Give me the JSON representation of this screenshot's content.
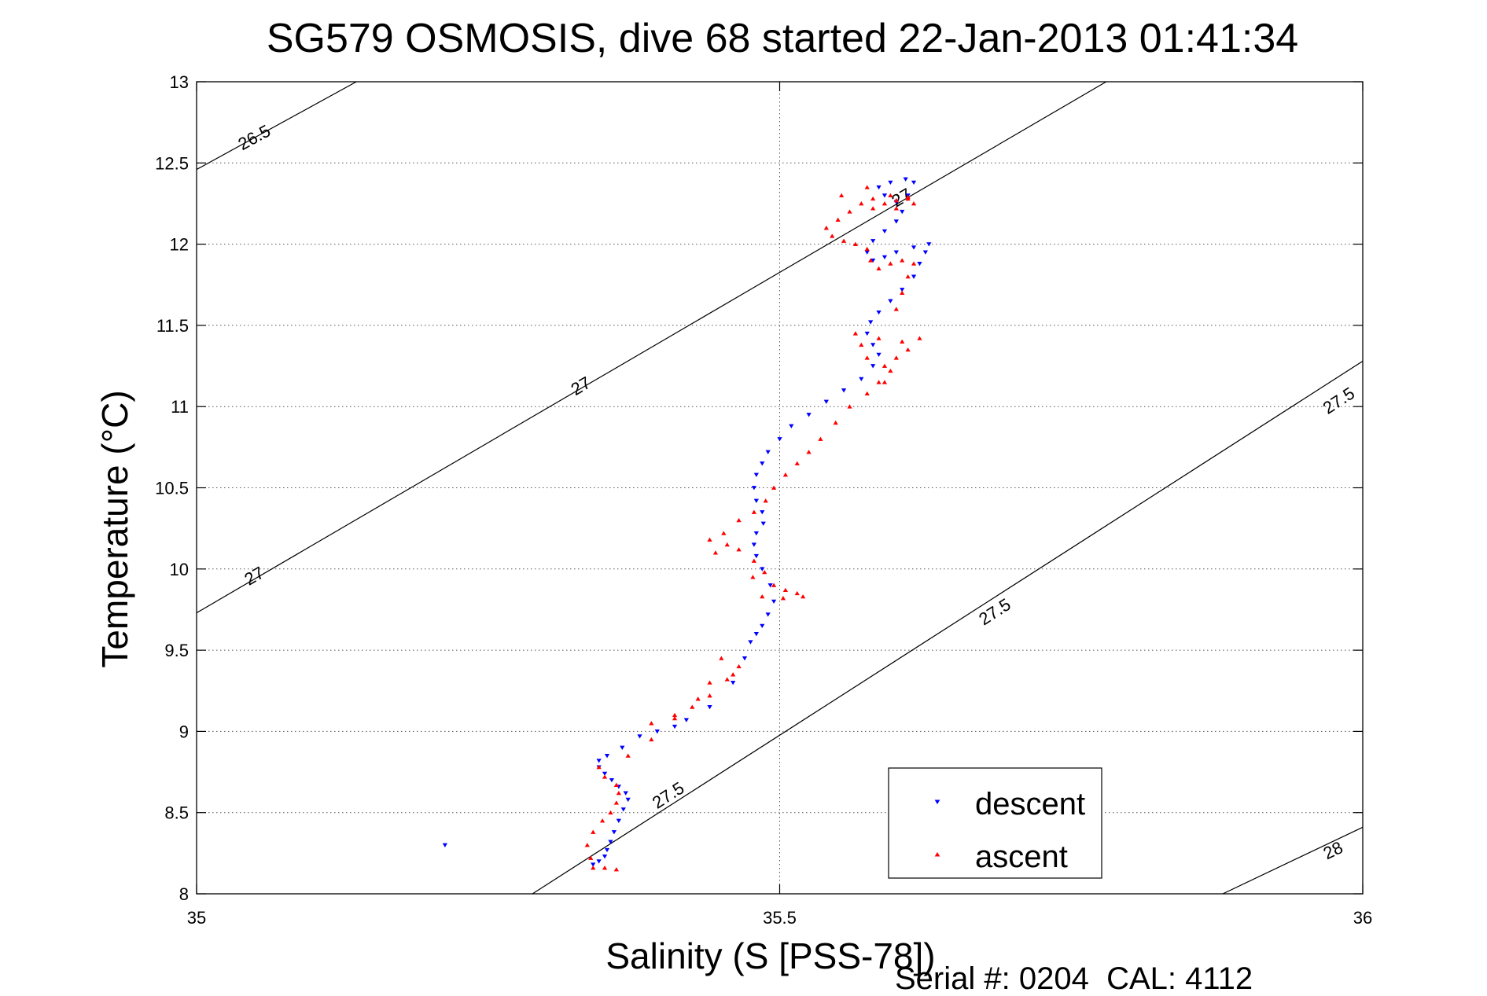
{
  "chart_data": {
    "type": "scatter",
    "title": "SG579 OSMOSIS, dive 68 started 22-Jan-2013 01:41:34",
    "xlabel": "Salinity (S [PSS-78])",
    "ylabel": "Temperature (°C)",
    "xlim": [
      35,
      36
    ],
    "ylim": [
      8,
      13
    ],
    "xticks": [
      35,
      35.5,
      36
    ],
    "xtick_labels": [
      "35",
      "35.5",
      "36"
    ],
    "yticks": [
      8,
      8.5,
      9,
      9.5,
      10,
      10.5,
      11,
      11.5,
      12,
      12.5,
      13
    ],
    "ytick_labels": [
      "8",
      "8.5",
      "9",
      "9.5",
      "10",
      "10.5",
      "11",
      "11.5",
      "12",
      "12.5",
      "13"
    ],
    "grid": "dotted, at major ticks",
    "legend_position": "lower-right",
    "footer": "Serial #: 0204  CAL: 4112",
    "colors": {
      "descent": "#0000ff",
      "ascent": "#ff0000",
      "contour": "#000000"
    },
    "contours": [
      {
        "level": "26.5",
        "points": [
          [
            35.0,
            12.46
          ],
          [
            35.137,
            13.0
          ]
        ]
      },
      {
        "level": "27",
        "points": [
          [
            35.0,
            9.73
          ],
          [
            35.78,
            13.0
          ]
        ]
      },
      {
        "level": "27.5",
        "points": [
          [
            35.288,
            8.0
          ],
          [
            36.0,
            11.28
          ]
        ]
      },
      {
        "level": "28",
        "points": [
          [
            35.88,
            8.0
          ],
          [
            36.0,
            8.41
          ]
        ]
      }
    ],
    "contour_labels": [
      {
        "text": "26.5",
        "x": 35.05,
        "y": 12.65
      },
      {
        "text": "27",
        "x": 35.33,
        "y": 11.12
      },
      {
        "text": "27",
        "x": 35.05,
        "y": 9.95
      },
      {
        "text": "27",
        "x": 35.605,
        "y": 12.28
      },
      {
        "text": "27.5",
        "x": 35.98,
        "y": 11.03
      },
      {
        "text": "27.5",
        "x": 35.685,
        "y": 9.73
      },
      {
        "text": "27.5",
        "x": 35.405,
        "y": 8.6
      },
      {
        "text": "28",
        "x": 35.975,
        "y": 8.26
      }
    ],
    "series": [
      {
        "name": "descent",
        "marker": "triangle-down",
        "points": [
          [
            35.213,
            8.3
          ],
          [
            35.34,
            8.18
          ],
          [
            35.345,
            8.2
          ],
          [
            35.35,
            8.23
          ],
          [
            35.352,
            8.27
          ],
          [
            35.355,
            8.32
          ],
          [
            35.358,
            8.38
          ],
          [
            35.362,
            8.45
          ],
          [
            35.366,
            8.52
          ],
          [
            35.37,
            8.58
          ],
          [
            35.368,
            8.62
          ],
          [
            35.362,
            8.66
          ],
          [
            35.356,
            8.7
          ],
          [
            35.35,
            8.74
          ],
          [
            35.345,
            8.78
          ],
          [
            35.345,
            8.82
          ],
          [
            35.352,
            8.85
          ],
          [
            35.365,
            8.9
          ],
          [
            35.38,
            8.97
          ],
          [
            35.395,
            9.0
          ],
          [
            35.41,
            9.03
          ],
          [
            35.42,
            9.07
          ],
          [
            35.44,
            9.15
          ],
          [
            35.46,
            9.3
          ],
          [
            35.47,
            9.45
          ],
          [
            35.475,
            9.55
          ],
          [
            35.48,
            9.6
          ],
          [
            35.485,
            9.65
          ],
          [
            35.49,
            9.72
          ],
          [
            35.495,
            9.8
          ],
          [
            35.492,
            9.9
          ],
          [
            35.485,
            10.0
          ],
          [
            35.48,
            10.08
          ],
          [
            35.478,
            10.15
          ],
          [
            35.48,
            10.22
          ],
          [
            35.486,
            10.28
          ],
          [
            35.485,
            10.35
          ],
          [
            35.48,
            10.42
          ],
          [
            35.478,
            10.5
          ],
          [
            35.48,
            10.58
          ],
          [
            35.485,
            10.65
          ],
          [
            35.49,
            10.72
          ],
          [
            35.5,
            10.8
          ],
          [
            35.51,
            10.88
          ],
          [
            35.525,
            10.95
          ],
          [
            35.54,
            11.03
          ],
          [
            35.555,
            11.1
          ],
          [
            35.57,
            11.17
          ],
          [
            35.58,
            11.25
          ],
          [
            35.585,
            11.32
          ],
          [
            35.58,
            11.38
          ],
          [
            35.575,
            11.45
          ],
          [
            35.578,
            11.52
          ],
          [
            35.585,
            11.58
          ],
          [
            35.595,
            11.65
          ],
          [
            35.605,
            11.72
          ],
          [
            35.615,
            11.8
          ],
          [
            35.62,
            11.88
          ],
          [
            35.625,
            11.95
          ],
          [
            35.628,
            12.0
          ],
          [
            35.615,
            11.98
          ],
          [
            35.6,
            11.95
          ],
          [
            35.59,
            11.92
          ],
          [
            35.58,
            11.9
          ],
          [
            35.575,
            11.95
          ],
          [
            35.58,
            12.02
          ],
          [
            35.59,
            12.08
          ],
          [
            35.6,
            12.14
          ],
          [
            35.605,
            12.2
          ],
          [
            35.6,
            12.26
          ],
          [
            35.59,
            12.3
          ],
          [
            35.585,
            12.35
          ],
          [
            35.595,
            12.38
          ],
          [
            35.608,
            12.4
          ],
          [
            35.615,
            12.38
          ],
          [
            35.61,
            12.3
          ]
        ]
      },
      {
        "name": "ascent",
        "marker": "triangle-up",
        "points": [
          [
            35.34,
            8.16
          ],
          [
            35.35,
            8.16
          ],
          [
            35.36,
            8.15
          ],
          [
            35.338,
            8.22
          ],
          [
            35.335,
            8.3
          ],
          [
            35.34,
            8.38
          ],
          [
            35.348,
            8.45
          ],
          [
            35.355,
            8.5
          ],
          [
            35.36,
            8.56
          ],
          [
            35.362,
            8.62
          ],
          [
            35.36,
            8.67
          ],
          [
            35.35,
            8.72
          ],
          [
            35.345,
            8.78
          ],
          [
            35.37,
            8.85
          ],
          [
            35.39,
            8.95
          ],
          [
            35.41,
            9.08
          ],
          [
            35.425,
            9.15
          ],
          [
            35.44,
            9.22
          ],
          [
            35.455,
            9.32
          ],
          [
            35.465,
            9.4
          ],
          [
            35.46,
            9.35
          ],
          [
            35.45,
            9.45
          ],
          [
            35.44,
            9.3
          ],
          [
            35.43,
            9.2
          ],
          [
            35.41,
            9.1
          ],
          [
            35.39,
            9.05
          ],
          [
            35.455,
            10.15
          ],
          [
            35.445,
            10.1
          ],
          [
            35.44,
            10.18
          ],
          [
            35.452,
            10.22
          ],
          [
            35.465,
            10.12
          ],
          [
            35.478,
            10.05
          ],
          [
            35.487,
            9.98
          ],
          [
            35.495,
            9.9
          ],
          [
            35.505,
            9.87
          ],
          [
            35.515,
            9.85
          ],
          [
            35.52,
            9.83
          ],
          [
            35.503,
            9.82
          ],
          [
            35.485,
            9.83
          ],
          [
            35.477,
            9.95
          ],
          [
            35.465,
            10.3
          ],
          [
            35.478,
            10.35
          ],
          [
            35.488,
            10.42
          ],
          [
            35.495,
            10.5
          ],
          [
            35.505,
            10.58
          ],
          [
            35.515,
            10.65
          ],
          [
            35.525,
            10.72
          ],
          [
            35.535,
            10.8
          ],
          [
            35.548,
            10.9
          ],
          [
            35.56,
            11.0
          ],
          [
            35.575,
            11.08
          ],
          [
            35.585,
            11.15
          ],
          [
            35.59,
            11.25
          ],
          [
            35.575,
            11.3
          ],
          [
            35.57,
            11.38
          ],
          [
            35.565,
            11.45
          ],
          [
            35.585,
            11.42
          ],
          [
            35.605,
            11.4
          ],
          [
            35.62,
            11.42
          ],
          [
            35.61,
            11.35
          ],
          [
            35.6,
            11.3
          ],
          [
            35.595,
            11.22
          ],
          [
            35.59,
            11.15
          ],
          [
            35.6,
            11.6
          ],
          [
            35.605,
            11.7
          ],
          [
            35.61,
            11.8
          ],
          [
            35.615,
            11.88
          ],
          [
            35.605,
            11.9
          ],
          [
            35.595,
            11.88
          ],
          [
            35.585,
            11.85
          ],
          [
            35.578,
            11.9
          ],
          [
            35.575,
            11.97
          ],
          [
            35.565,
            12.0
          ],
          [
            35.555,
            12.02
          ],
          [
            35.545,
            12.05
          ],
          [
            35.54,
            12.1
          ],
          [
            35.55,
            12.15
          ],
          [
            35.56,
            12.2
          ],
          [
            35.57,
            12.25
          ],
          [
            35.58,
            12.28
          ],
          [
            35.595,
            12.3
          ],
          [
            35.61,
            12.28
          ],
          [
            35.615,
            12.25
          ],
          [
            35.6,
            12.22
          ],
          [
            35.59,
            12.25
          ],
          [
            35.6,
            12.27
          ],
          [
            35.61,
            12.29
          ],
          [
            35.575,
            12.35
          ],
          [
            35.553,
            12.3
          ],
          [
            35.58,
            12.22
          ]
        ]
      }
    ]
  }
}
